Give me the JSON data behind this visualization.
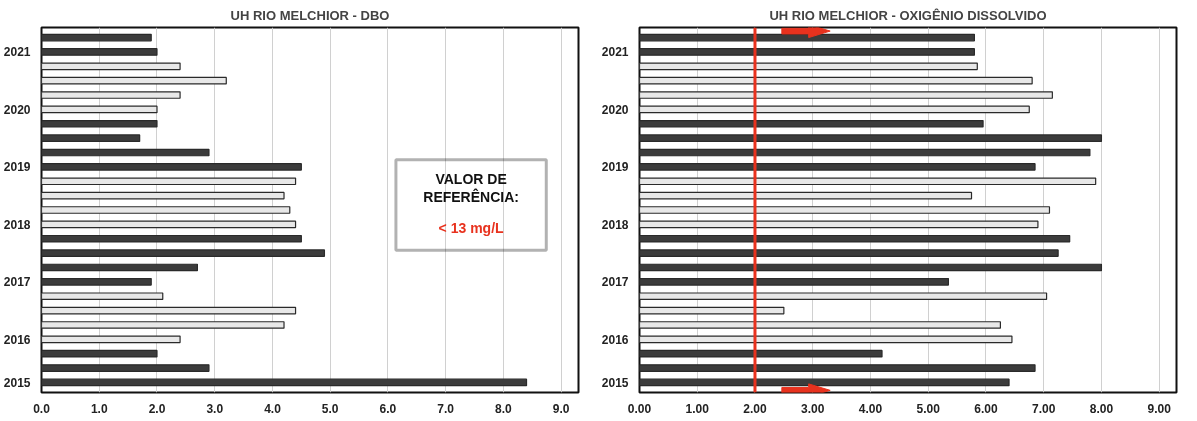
{
  "chart_data": [
    {
      "type": "bar",
      "orientation": "horizontal",
      "title": "UH RIO MELCHIOR - DBO",
      "categories": [
        null,
        "2021",
        null,
        null,
        null,
        "2020",
        null,
        null,
        null,
        "2019",
        null,
        null,
        null,
        "2018",
        null,
        null,
        null,
        "2017",
        null,
        null,
        null,
        "2016",
        null,
        null,
        "2015"
      ],
      "values": [
        1.9,
        2.0,
        2.4,
        3.2,
        2.4,
        2.0,
        2.0,
        1.7,
        2.9,
        4.5,
        4.4,
        4.2,
        4.3,
        4.4,
        4.5,
        4.9,
        2.7,
        1.9,
        2.1,
        4.4,
        4.2,
        2.4,
        2.0,
        2.9,
        8.4
      ],
      "colors": [
        "#3c3c3c",
        "#3c3c3c",
        "#e8e8e8",
        "#e8e8e8",
        "#e8e8e8",
        "#e8e8e8",
        "#3c3c3c",
        "#3c3c3c",
        "#3c3c3c",
        "#3c3c3c",
        "#e8e8e8",
        "#e8e8e8",
        "#e8e8e8",
        "#e8e8e8",
        "#3c3c3c",
        "#3c3c3c",
        "#3c3c3c",
        "#3c3c3c",
        "#e8e8e8",
        "#e8e8e8",
        "#e8e8e8",
        "#e8e8e8",
        "#3c3c3c",
        "#3c3c3c",
        "#3c3c3c"
      ],
      "xlim": [
        0,
        9.3
      ],
      "xticks": [
        {
          "value": 0,
          "label": "0.0"
        },
        {
          "value": 1,
          "label": "1.0"
        },
        {
          "value": 2,
          "label": "2.0"
        },
        {
          "value": 3,
          "label": "3.0"
        },
        {
          "value": 4,
          "label": "4.0"
        },
        {
          "value": 5,
          "label": "5.0"
        },
        {
          "value": 6,
          "label": "6.0"
        },
        {
          "value": 7,
          "label": "7.0"
        },
        {
          "value": 8,
          "label": "8.0"
        },
        {
          "value": 9,
          "label": "9.0"
        }
      ],
      "grid": "x",
      "annotations": [
        "VALOR DE REFERÊNCIA:",
        "< 13 mg/L"
      ]
    },
    {
      "type": "bar",
      "orientation": "horizontal",
      "title": "UH RIO MELCHIOR - OXIGÊNIO DISSOLVIDO",
      "categories": [
        null,
        "2021",
        null,
        null,
        null,
        "2020",
        null,
        null,
        null,
        "2019",
        null,
        null,
        null,
        "2018",
        null,
        null,
        null,
        "2017",
        null,
        null,
        null,
        "2016",
        null,
        null,
        "2015"
      ],
      "values": [
        5.8,
        5.8,
        5.85,
        6.8,
        7.15,
        6.75,
        5.95,
        8.0,
        7.8,
        6.85,
        7.9,
        5.75,
        7.1,
        6.9,
        7.45,
        7.25,
        8.0,
        5.35,
        7.05,
        2.5,
        6.25,
        6.45,
        4.2,
        6.85,
        6.4
      ],
      "colors": [
        "#3c3c3c",
        "#3c3c3c",
        "#e8e8e8",
        "#e8e8e8",
        "#e8e8e8",
        "#e8e8e8",
        "#3c3c3c",
        "#3c3c3c",
        "#3c3c3c",
        "#3c3c3c",
        "#e8e8e8",
        "#e8e8e8",
        "#e8e8e8",
        "#e8e8e8",
        "#3c3c3c",
        "#3c3c3c",
        "#3c3c3c",
        "#3c3c3c",
        "#e8e8e8",
        "#e8e8e8",
        "#e8e8e8",
        "#e8e8e8",
        "#3c3c3c",
        "#3c3c3c",
        "#3c3c3c"
      ],
      "xlim": [
        0,
        9.3
      ],
      "xticks": [
        {
          "value": 0,
          "label": "0.00"
        },
        {
          "value": 1,
          "label": "1.00"
        },
        {
          "value": 2,
          "label": "2.00"
        },
        {
          "value": 3,
          "label": "3.00"
        },
        {
          "value": 4,
          "label": "4.00"
        },
        {
          "value": 5,
          "label": "5.00"
        },
        {
          "value": 6,
          "label": "6.00"
        },
        {
          "value": 7,
          "label": "7.00"
        },
        {
          "value": 8,
          "label": "8.00"
        },
        {
          "value": 9,
          "label": "9.00"
        }
      ],
      "grid": "x",
      "ref_lines": [
        {
          "axis": "x",
          "value": 2,
          "label": null,
          "color": "#e8321e"
        }
      ]
    }
  ]
}
